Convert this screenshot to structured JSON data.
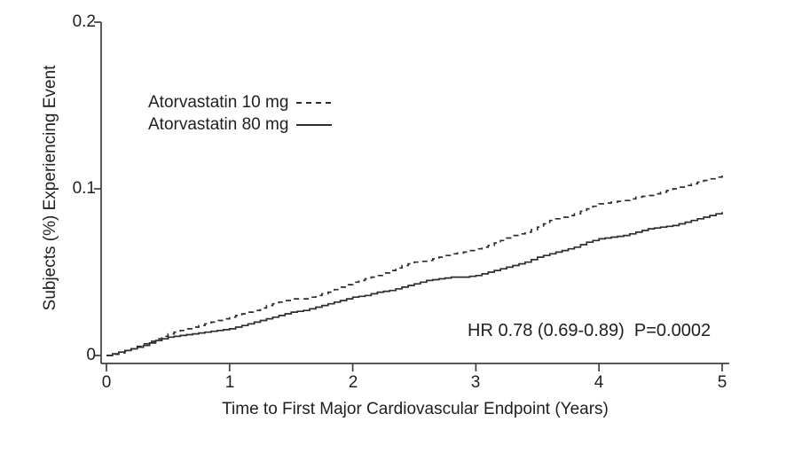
{
  "figure": {
    "background": "#ffffff",
    "axis_color": "#3f3f3f",
    "text_color": "#1f1f1f"
  },
  "chart_data": {
    "type": "line",
    "subtype": "kaplan-meier-cumulative-incidence",
    "title": "",
    "xlabel": "Time to First Major Cardiovascular Endpoint (Years)",
    "ylabel": "Subjects (%) Experiencing Event",
    "xlim": [
      0,
      5
    ],
    "ylim": [
      0,
      0.2
    ],
    "x_ticks": [
      0,
      1,
      2,
      3,
      4,
      5
    ],
    "x_tick_labels": [
      "0",
      "1",
      "2",
      "3",
      "4",
      "5"
    ],
    "y_ticks": [
      0,
      0.1,
      0.2
    ],
    "y_tick_labels": [
      "0",
      "0.1",
      "0.2"
    ],
    "grid": false,
    "legend_position": "upper-left-inside",
    "annotation": {
      "text": "HR 0.78 (0.69-0.89)  P=0.0002",
      "x": 2.95,
      "y": 0.015
    },
    "series": [
      {
        "name": "Atorvastatin 10 mg",
        "style": "dashed",
        "color": "#2d2d2d",
        "points": [
          [
            0.0,
            0.0
          ],
          [
            0.1,
            0.0015
          ],
          [
            0.2,
            0.004
          ],
          [
            0.3,
            0.007
          ],
          [
            0.4,
            0.01
          ],
          [
            0.5,
            0.013
          ],
          [
            0.6,
            0.015
          ],
          [
            0.7,
            0.017
          ],
          [
            0.8,
            0.019
          ],
          [
            0.9,
            0.021
          ],
          [
            1.0,
            0.023
          ],
          [
            1.1,
            0.025
          ],
          [
            1.2,
            0.027
          ],
          [
            1.3,
            0.03
          ],
          [
            1.4,
            0.032
          ],
          [
            1.5,
            0.034
          ],
          [
            1.6,
            0.034
          ],
          [
            1.7,
            0.036
          ],
          [
            1.8,
            0.038
          ],
          [
            1.9,
            0.041
          ],
          [
            2.0,
            0.044
          ],
          [
            2.1,
            0.046
          ],
          [
            2.2,
            0.048
          ],
          [
            2.3,
            0.051
          ],
          [
            2.4,
            0.054
          ],
          [
            2.5,
            0.056
          ],
          [
            2.6,
            0.057
          ],
          [
            2.7,
            0.059
          ],
          [
            2.8,
            0.061
          ],
          [
            2.9,
            0.062
          ],
          [
            3.0,
            0.064
          ],
          [
            3.1,
            0.066
          ],
          [
            3.2,
            0.069
          ],
          [
            3.3,
            0.072
          ],
          [
            3.4,
            0.074
          ],
          [
            3.5,
            0.077
          ],
          [
            3.6,
            0.081
          ],
          [
            3.7,
            0.083
          ],
          [
            3.8,
            0.085
          ],
          [
            3.9,
            0.088
          ],
          [
            4.0,
            0.091
          ],
          [
            4.1,
            0.092
          ],
          [
            4.2,
            0.093
          ],
          [
            4.3,
            0.095
          ],
          [
            4.4,
            0.096
          ],
          [
            4.5,
            0.098
          ],
          [
            4.6,
            0.1
          ],
          [
            4.7,
            0.102
          ],
          [
            4.8,
            0.104
          ],
          [
            4.9,
            0.106
          ],
          [
            5.0,
            0.108
          ]
        ]
      },
      {
        "name": "Atorvastatin 80 mg",
        "style": "solid",
        "color": "#2d2d2d",
        "points": [
          [
            0.0,
            0.0
          ],
          [
            0.1,
            0.002
          ],
          [
            0.2,
            0.004
          ],
          [
            0.3,
            0.006
          ],
          [
            0.4,
            0.009
          ],
          [
            0.5,
            0.011
          ],
          [
            0.6,
            0.012
          ],
          [
            0.7,
            0.013
          ],
          [
            0.8,
            0.014
          ],
          [
            0.9,
            0.015
          ],
          [
            1.0,
            0.016
          ],
          [
            1.1,
            0.018
          ],
          [
            1.2,
            0.02
          ],
          [
            1.3,
            0.022
          ],
          [
            1.4,
            0.024
          ],
          [
            1.5,
            0.026
          ],
          [
            1.6,
            0.027
          ],
          [
            1.7,
            0.029
          ],
          [
            1.8,
            0.031
          ],
          [
            1.9,
            0.033
          ],
          [
            2.0,
            0.035
          ],
          [
            2.1,
            0.036
          ],
          [
            2.2,
            0.038
          ],
          [
            2.3,
            0.039
          ],
          [
            2.4,
            0.041
          ],
          [
            2.5,
            0.043
          ],
          [
            2.6,
            0.045
          ],
          [
            2.7,
            0.046
          ],
          [
            2.8,
            0.047
          ],
          [
            2.9,
            0.047
          ],
          [
            3.0,
            0.048
          ],
          [
            3.1,
            0.05
          ],
          [
            3.2,
            0.052
          ],
          [
            3.3,
            0.054
          ],
          [
            3.4,
            0.056
          ],
          [
            3.5,
            0.059
          ],
          [
            3.6,
            0.061
          ],
          [
            3.7,
            0.063
          ],
          [
            3.8,
            0.065
          ],
          [
            3.9,
            0.068
          ],
          [
            4.0,
            0.07
          ],
          [
            4.1,
            0.071
          ],
          [
            4.2,
            0.072
          ],
          [
            4.3,
            0.074
          ],
          [
            4.4,
            0.076
          ],
          [
            4.5,
            0.077
          ],
          [
            4.6,
            0.078
          ],
          [
            4.7,
            0.08
          ],
          [
            4.8,
            0.082
          ],
          [
            4.9,
            0.084
          ],
          [
            5.0,
            0.086
          ]
        ]
      }
    ]
  }
}
